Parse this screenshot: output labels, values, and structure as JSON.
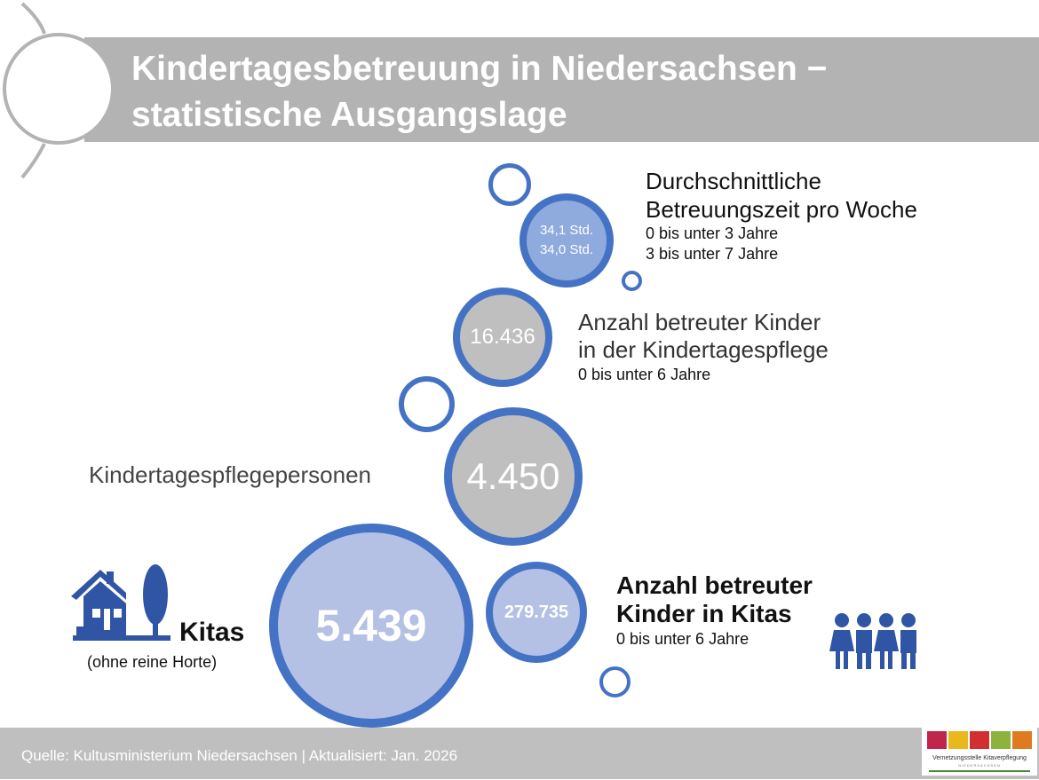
{
  "header": {
    "title_line1": "Kindertagesbetreuung in Niedersachsen −",
    "title_line2": "statistische Ausgangslage"
  },
  "betreuungszeit": {
    "value_1": "34,1 Std.",
    "value_2": "34,0 Std.",
    "title_line1": "Durchschnittliche",
    "title_line2": "Betreuungszeit pro Woche",
    "sub1": "0 bis unter 3 Jahre",
    "sub2": "3 bis unter 7 Jahre"
  },
  "kindertagespflege_kinder": {
    "value": "16.436",
    "title_line1": "Anzahl betreuter Kinder",
    "title_line2": "in der Kindertagespflege",
    "sub": "0 bis unter 6 Jahre"
  },
  "pflegepersonen": {
    "value": "4.450",
    "label": "Kindertagespflegepersonen"
  },
  "kitas": {
    "value": "5.439",
    "label": "Kitas",
    "sub": "(ohne reine Horte)"
  },
  "kita_kinder": {
    "value": "279.735",
    "title_line1": "Anzahl betreuter",
    "title_line2": "Kinder in Kitas",
    "sub": "0 bis unter 6 Jahre"
  },
  "footer": {
    "source": "Quelle: Kultusministerium Niedersachsen | Aktualisiert: Jan. 2026"
  },
  "logo": {
    "text": "Vernetzungsstelle Kitaverpflegung",
    "sub": "NIEDERSACHSEN"
  },
  "colors": {
    "accent": "#4472c4",
    "icon": "#2f55a4",
    "gray": "#bfbfbf",
    "light_blue": "#b4c0e4",
    "mid_blue": "#8faadc"
  }
}
